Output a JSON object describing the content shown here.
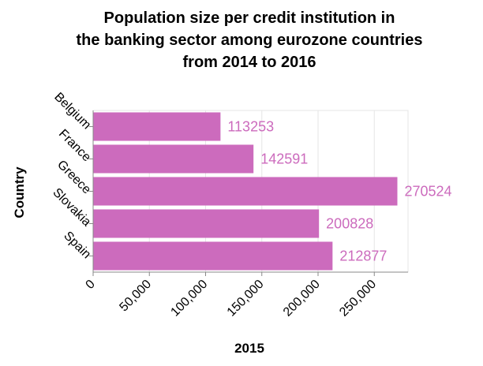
{
  "chart_data": {
    "type": "bar",
    "orientation": "horizontal",
    "title_lines": [
      "Population size per credit institution in",
      "the banking sector among eurozone countries",
      "from 2014 to 2016"
    ],
    "xlabel": "2015",
    "ylabel": "Country",
    "categories": [
      "Belgium",
      "France",
      "Greece",
      "Slovakia",
      "Spain"
    ],
    "values": [
      113253,
      142591,
      270524,
      200828,
      212877
    ],
    "xlim": [
      0,
      280000
    ],
    "xticks": [
      0,
      50000,
      100000,
      150000,
      200000,
      250000
    ],
    "xtick_labels": [
      "0",
      "50,000",
      "100,000",
      "150,000",
      "200,000",
      "250,000"
    ],
    "grid": true,
    "bar_color": "#cc6bbd",
    "label_color": "#cc6bbd"
  }
}
